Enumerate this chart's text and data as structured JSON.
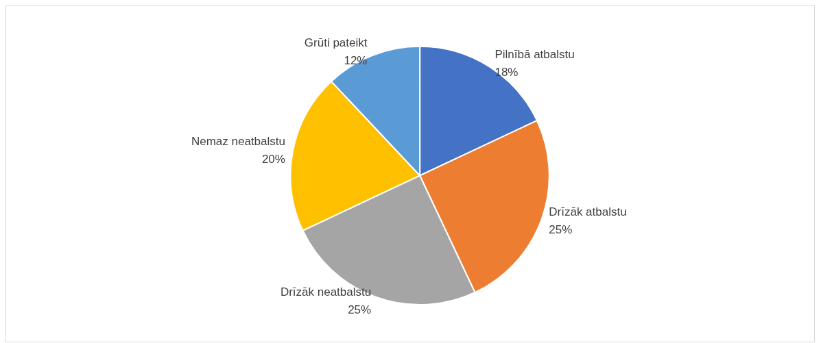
{
  "chart_data": {
    "type": "pie",
    "categories": [
      "Pilnībā atbalstu",
      "Drīzāk atbalstu",
      "Drīzāk neatbalstu",
      "Nemaz neatbalstu",
      "Grūti pateikt"
    ],
    "values": [
      18,
      25,
      25,
      20,
      12
    ],
    "value_labels": [
      "18%",
      "25%",
      "25%",
      "20%",
      "12%"
    ],
    "colors": [
      "#4472c4",
      "#ed7d31",
      "#a5a5a5",
      "#ffc000",
      "#5b9bd5"
    ],
    "legend": false
  }
}
